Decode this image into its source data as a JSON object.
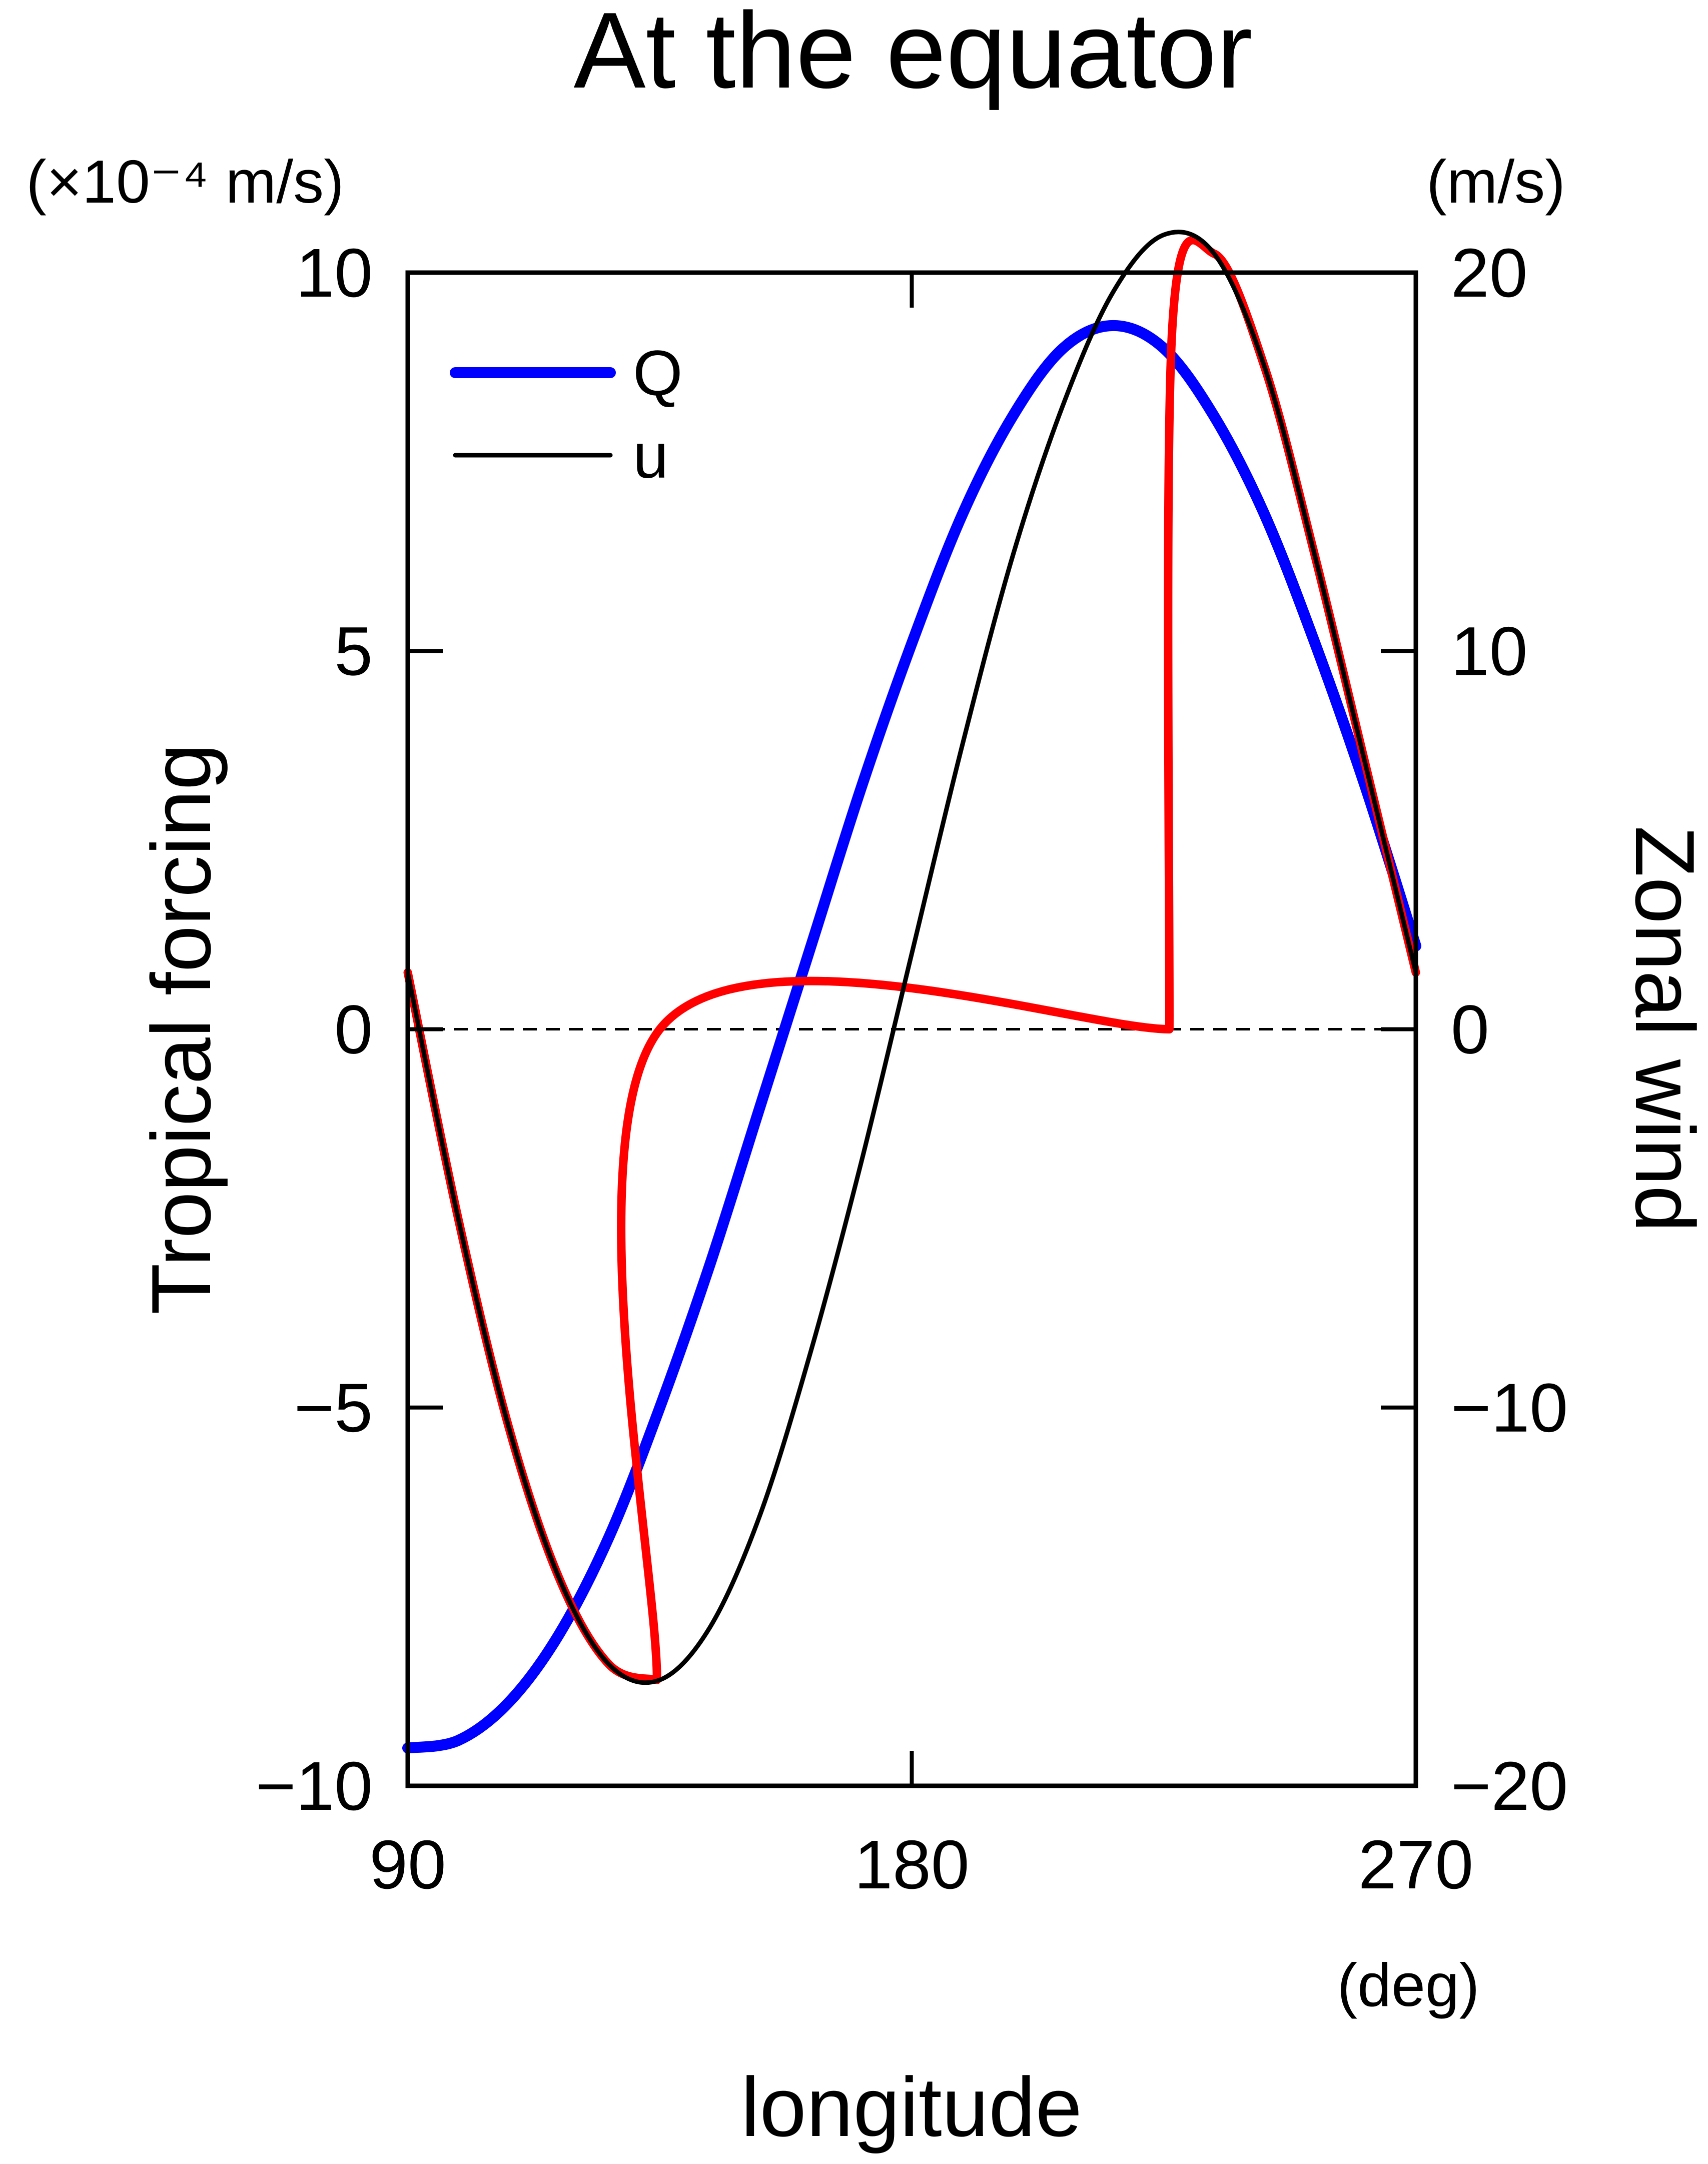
{
  "chart_data": {
    "type": "line",
    "title": "At the equator",
    "xlabel": "longitude",
    "xunit": "(deg)",
    "ylabel_left": "Tropical forcing",
    "yunit_left": "(×10⁻⁴ m/s)",
    "ylabel_right": "Zonal wind",
    "yunit_right": "(m/s)",
    "xlim": [
      90,
      270
    ],
    "ylim_left": [
      -10,
      10
    ],
    "ylim_right": [
      -20,
      20
    ],
    "x_ticks": [
      90,
      180,
      270
    ],
    "x_tick_labels": [
      "90",
      "180",
      "270"
    ],
    "y_ticks_left": [
      10,
      5,
      0,
      -5,
      -10
    ],
    "y_tick_labels_left": [
      "10",
      "5",
      "0",
      "−5",
      "−10"
    ],
    "y_ticks_right": [
      20,
      10,
      0,
      -10,
      -20
    ],
    "y_tick_labels_right": [
      "20",
      "10",
      "0",
      "−10",
      "−20"
    ],
    "zero_line": true,
    "legend": {
      "placement": "top-left",
      "entries": [
        "Q",
        "u"
      ]
    },
    "series": [
      {
        "name": "Q",
        "axis": "left",
        "color": "#0000ff",
        "x": [
          90,
          99,
          108,
          117,
          126,
          135,
          144,
          153,
          162,
          171,
          180,
          189,
          198,
          207,
          216,
          225,
          234,
          243,
          252,
          261,
          270
        ],
        "y": [
          -9.5,
          -9.4,
          -8.9,
          -8.0,
          -6.7,
          -5.0,
          -3.1,
          -1.0,
          1.1,
          3.2,
          5.1,
          6.8,
          8.1,
          9.0,
          9.3,
          9.0,
          8.1,
          6.8,
          5.1,
          3.2,
          1.1
        ]
      },
      {
        "name": "u",
        "axis": "right",
        "color": "#000000",
        "x": [
          90,
          99,
          108,
          117,
          126,
          135,
          144,
          153,
          162,
          171,
          180,
          189,
          198,
          207,
          216,
          225,
          234,
          243,
          252,
          261,
          270
        ],
        "y": [
          1.5,
          -5.0,
          -10.5,
          -14.5,
          -16.8,
          -17.2,
          -15.8,
          -12.8,
          -8.5,
          -3.5,
          2.0,
          7.5,
          12.5,
          16.5,
          19.5,
          21.0,
          20.5,
          17.5,
          12.5,
          7.0,
          1.5
        ]
      },
      {
        "axis": "right",
        "color": "#ff0000",
        "x": [
          90,
          99,
          108,
          117,
          126,
          134.5,
          135,
          226,
          226.5,
          234,
          243,
          252,
          261,
          270
        ],
        "y": [
          1.5,
          -5.0,
          -10.5,
          -14.5,
          -16.8,
          -17.2,
          0,
          0,
          18.5,
          20.5,
          17.5,
          12.5,
          7.0,
          1.5
        ]
      }
    ]
  }
}
